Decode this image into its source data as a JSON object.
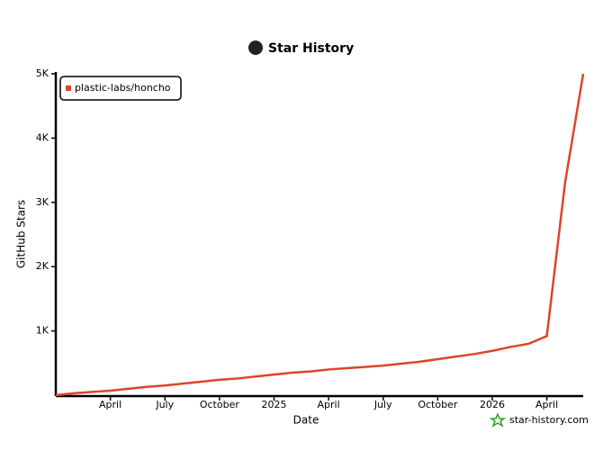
{
  "chart_data": {
    "type": "line",
    "title": "Star History",
    "x_label": "Date",
    "y_label": "GitHub Stars",
    "watermark": "star-history.com",
    "x": [
      "2024-01",
      "2024-02",
      "2024-03",
      "2024-04",
      "2024-05",
      "2024-06",
      "2024-07",
      "2024-08",
      "2024-09",
      "2024-10",
      "2024-11",
      "2024-12",
      "2025-01",
      "2025-02",
      "2025-03",
      "2025-04",
      "2025-05",
      "2025-06",
      "2025-07",
      "2025-08",
      "2025-09",
      "2025-10",
      "2025-11",
      "2025-12",
      "2026-01",
      "2026-02",
      "2026-03",
      "2026-04",
      "2026-05",
      "2026-06"
    ],
    "series": [
      {
        "name": "plastic-labs/honcho",
        "color": "#dd4528",
        "values": [
          0,
          30,
          50,
          70,
          100,
          130,
          150,
          180,
          210,
          240,
          260,
          290,
          320,
          350,
          370,
          400,
          420,
          440,
          460,
          490,
          520,
          560,
          600,
          640,
          690,
          750,
          800,
          920,
          3300,
          5000
        ]
      }
    ],
    "xlim": [
      "2024-01",
      "2026-06"
    ],
    "xticks": [
      {
        "value": "2024-04",
        "label": "April"
      },
      {
        "value": "2024-07",
        "label": "July"
      },
      {
        "value": "2024-10",
        "label": "October"
      },
      {
        "value": "2025-01",
        "label": "2025"
      },
      {
        "value": "2025-04",
        "label": "April"
      },
      {
        "value": "2025-07",
        "label": "July"
      },
      {
        "value": "2025-10",
        "label": "October"
      },
      {
        "value": "2026-01",
        "label": "2026"
      },
      {
        "value": "2026-04",
        "label": "April"
      }
    ],
    "ylim": [
      0,
      5000
    ],
    "yticks": [
      {
        "value": 1000,
        "label": "1K"
      },
      {
        "value": 2000,
        "label": "2K"
      },
      {
        "value": 3000,
        "label": "3K"
      },
      {
        "value": 4000,
        "label": "4K"
      },
      {
        "value": 5000,
        "label": "5K"
      }
    ],
    "legend": "top-left"
  }
}
